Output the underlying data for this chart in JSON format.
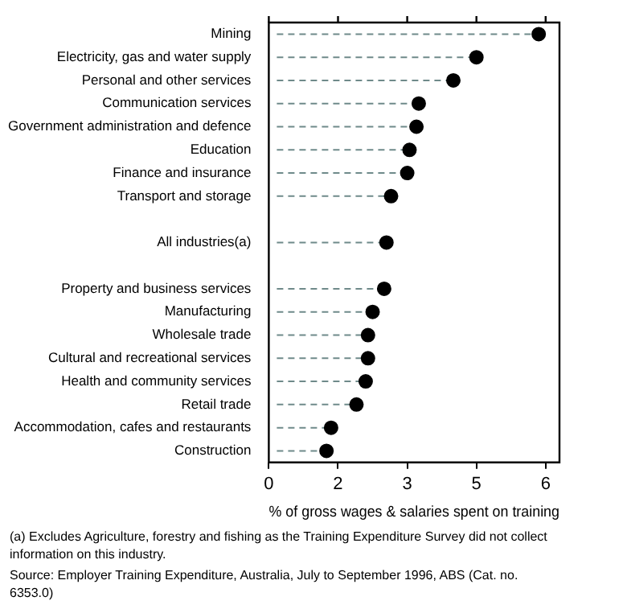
{
  "chart_data": {
    "type": "lollipop",
    "orientation": "horizontal",
    "categories": [
      "Mining",
      "Electricity, gas and water supply",
      "Personal and other services",
      "Communication services",
      "Government administration and defence",
      "Education",
      "Finance and insurance",
      "Transport and storage",
      null,
      "All industries(a)",
      null,
      "Property and business services",
      "Manufacturing",
      "Wholesale trade",
      "Cultural and recreational services",
      "Health and community services",
      "Retail trade",
      "Accommodation, cafes and restaurants",
      "Construction"
    ],
    "series": [
      {
        "color": "#000000",
        "values": [
          5.85,
          4.5,
          4.0,
          3.25,
          3.2,
          3.05,
          3.0,
          2.65,
          null,
          2.55,
          null,
          2.5,
          2.25,
          2.15,
          2.15,
          2.1,
          1.9,
          1.35,
          1.25
        ]
      }
    ],
    "xlabel": "% of gross wages & salaries spent on training",
    "xlim": [
      0,
      6.3
    ],
    "xticks": [
      0,
      {
        "value": 1.5,
        "label": "2"
      },
      3,
      {
        "value": 4.5,
        "label": "5"
      },
      6
    ],
    "marker": "circle",
    "line_style": "dashed",
    "grid": false,
    "legend": false,
    "annotations": [
      "(a) Excludes Agriculture, forestry and fishing as the Training Expenditure Survey did not collect information on this industry.",
      "Source: Employer Training Expenditure, Australia, July to September 1996, ABS (Cat. no. 6353.0)"
    ]
  }
}
